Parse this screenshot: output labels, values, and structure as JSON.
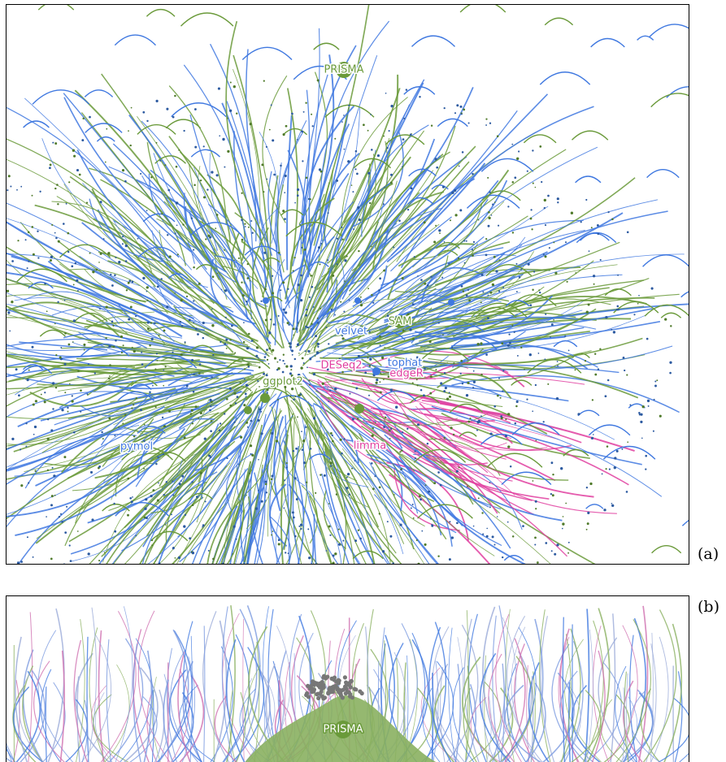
{
  "figure": {
    "panels": [
      {
        "tag": "(a)",
        "labels": [
          {
            "text": "PRISMA",
            "color": "#6a9a3a"
          },
          {
            "text": "SAM",
            "color": "#6a9a3a"
          },
          {
            "text": "velvet",
            "color": "#3f78e0"
          },
          {
            "text": "tophat",
            "color": "#3f78e0"
          },
          {
            "text": "DESeq2",
            "color": "#e040a0"
          },
          {
            "text": "edgeR",
            "color": "#e040a0"
          },
          {
            "text": "ggplot2",
            "color": "#6a9a3a"
          },
          {
            "text": "limma",
            "color": "#e040a0"
          },
          {
            "text": "pymol",
            "color": "#3f78e0"
          }
        ]
      },
      {
        "tag": "(b)",
        "labels": [
          {
            "text": "PRISMA",
            "color": "#ffffff"
          }
        ]
      }
    ]
  }
}
